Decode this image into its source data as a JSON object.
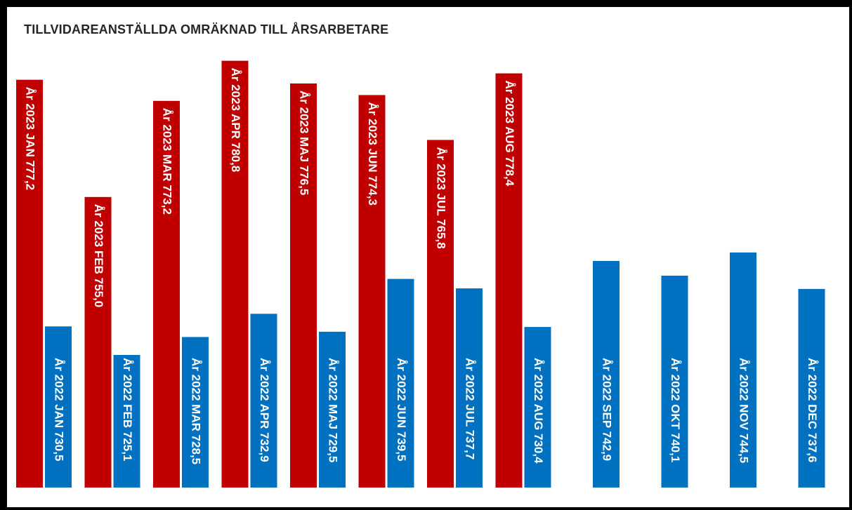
{
  "chart_data": {
    "type": "bar",
    "title": "TILLVIDAREANSTÄLLDA OMRÄKNAD TILL ÅRSARBETARE",
    "xlabel": "",
    "ylabel": "",
    "ylim": [
      700,
      785
    ],
    "grid": false,
    "legend": "none",
    "series": [
      {
        "year": "2023",
        "color": "#c00000",
        "label_position": "top",
        "labels": [
          "År 2023 JAN  777,2",
          "År 2023 FEB  755,0",
          "År 2023 MAR  773,2",
          "År 2023 APR  780,8",
          "År 2023 MAJ  776,5",
          "År 2023 JUN  774,3",
          "År 2023 JUL  765,8",
          "År 2023 AUG  778,4"
        ],
        "values": [
          777.2,
          755.0,
          773.2,
          780.8,
          776.5,
          774.3,
          765.8,
          778.4
        ]
      },
      {
        "year": "2022",
        "color": "#0070c0",
        "label_position": "bottom",
        "labels": [
          "År 2022 JAN  730,5",
          "År 2022 FEB  725,1",
          "År 2022 MAR  728,5",
          "År 2022 APR  732,9",
          "År 2022 MAJ  729,5",
          "År 2022 JUN  739,5",
          "År 2022 JUL  737,7",
          "År 2022 AUG  730,4",
          "År 2022 SEP  742,9",
          "År 2022 OKT  740,1",
          "År 2022 NOV  744,5",
          "År 2022 DEC  737,6"
        ],
        "values": [
          730.5,
          725.1,
          728.5,
          732.9,
          729.5,
          739.5,
          737.7,
          730.4,
          742.9,
          740.1,
          744.5,
          737.6
        ]
      }
    ]
  }
}
